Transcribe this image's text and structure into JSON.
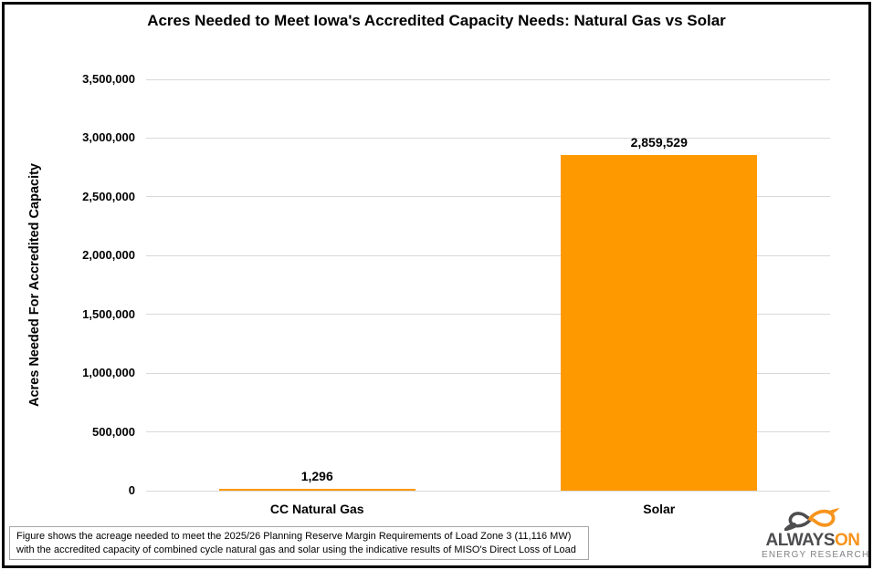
{
  "title": "Acres Needed to Meet Iowa's Accredited Capacity Needs: Natural Gas vs Solar",
  "chart_data": {
    "type": "bar",
    "title": "Acres Needed to Meet Iowa's Accredited Capacity Needs: Natural Gas vs Solar",
    "categories": [
      "CC Natural Gas",
      "Solar"
    ],
    "values": [
      1296,
      2859529
    ],
    "value_labels": [
      "1,296",
      "2,859,529"
    ],
    "xlabel": "",
    "ylabel": "Acres Needed For Accredited Capacity",
    "ylim": [
      0,
      3500000
    ],
    "ytick_step": 500000,
    "ytick_labels": [
      "0",
      "500,000",
      "1,000,000",
      "1,500,000",
      "2,000,000",
      "2,500,000",
      "3,000,000",
      "3,500,000"
    ],
    "grid": "horizontal",
    "legend_position": "none",
    "bar_color": "#FF9900",
    "gridline_color": "#D9D9D9"
  },
  "footnote": {
    "line1": "Figure shows the acreage needed to meet the 2025/26 Planning Reserve Margin Requirements of Load Zone 3 (11,116 MW)",
    "line2": "with the accredited capacity of combined cycle natural gas and solar using the indicative results of MISO's Direct Loss of Load"
  },
  "logo": {
    "name_part1": "ALWAYS",
    "name_part2": "ON",
    "subtitle": "ENERGY RESEARCH",
    "dark_color": "#4d4d4f",
    "orange_color": "#f7941d"
  }
}
